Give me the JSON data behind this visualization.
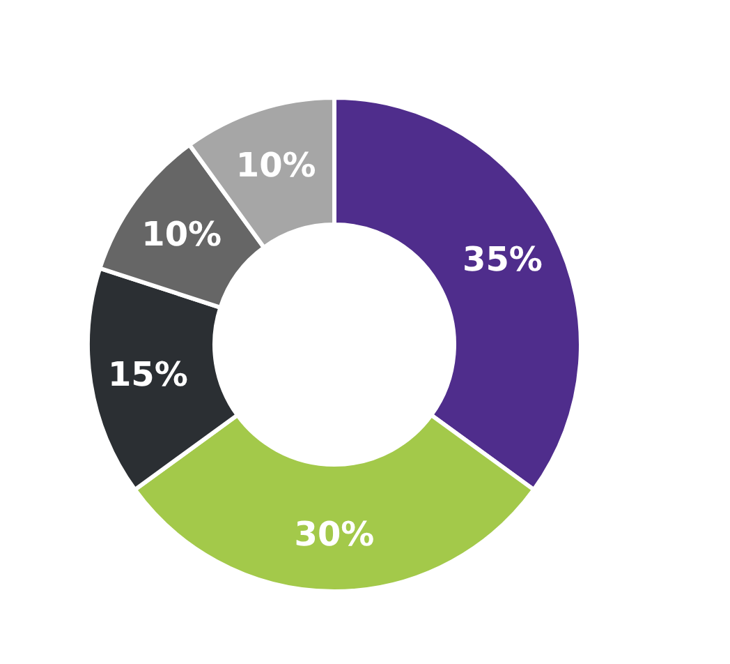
{
  "chart_data": {
    "type": "donut",
    "categories": [
      null,
      null,
      null,
      null,
      null
    ],
    "values": [
      35,
      30,
      15,
      10,
      10
    ],
    "colors": [
      "#4f2d8c",
      "#a3c94a",
      "#2b2f33",
      "#666666",
      "#a6a6a6"
    ],
    "value_labels": [
      "35%",
      "30%",
      "15%",
      "10%",
      "10%"
    ]
  }
}
